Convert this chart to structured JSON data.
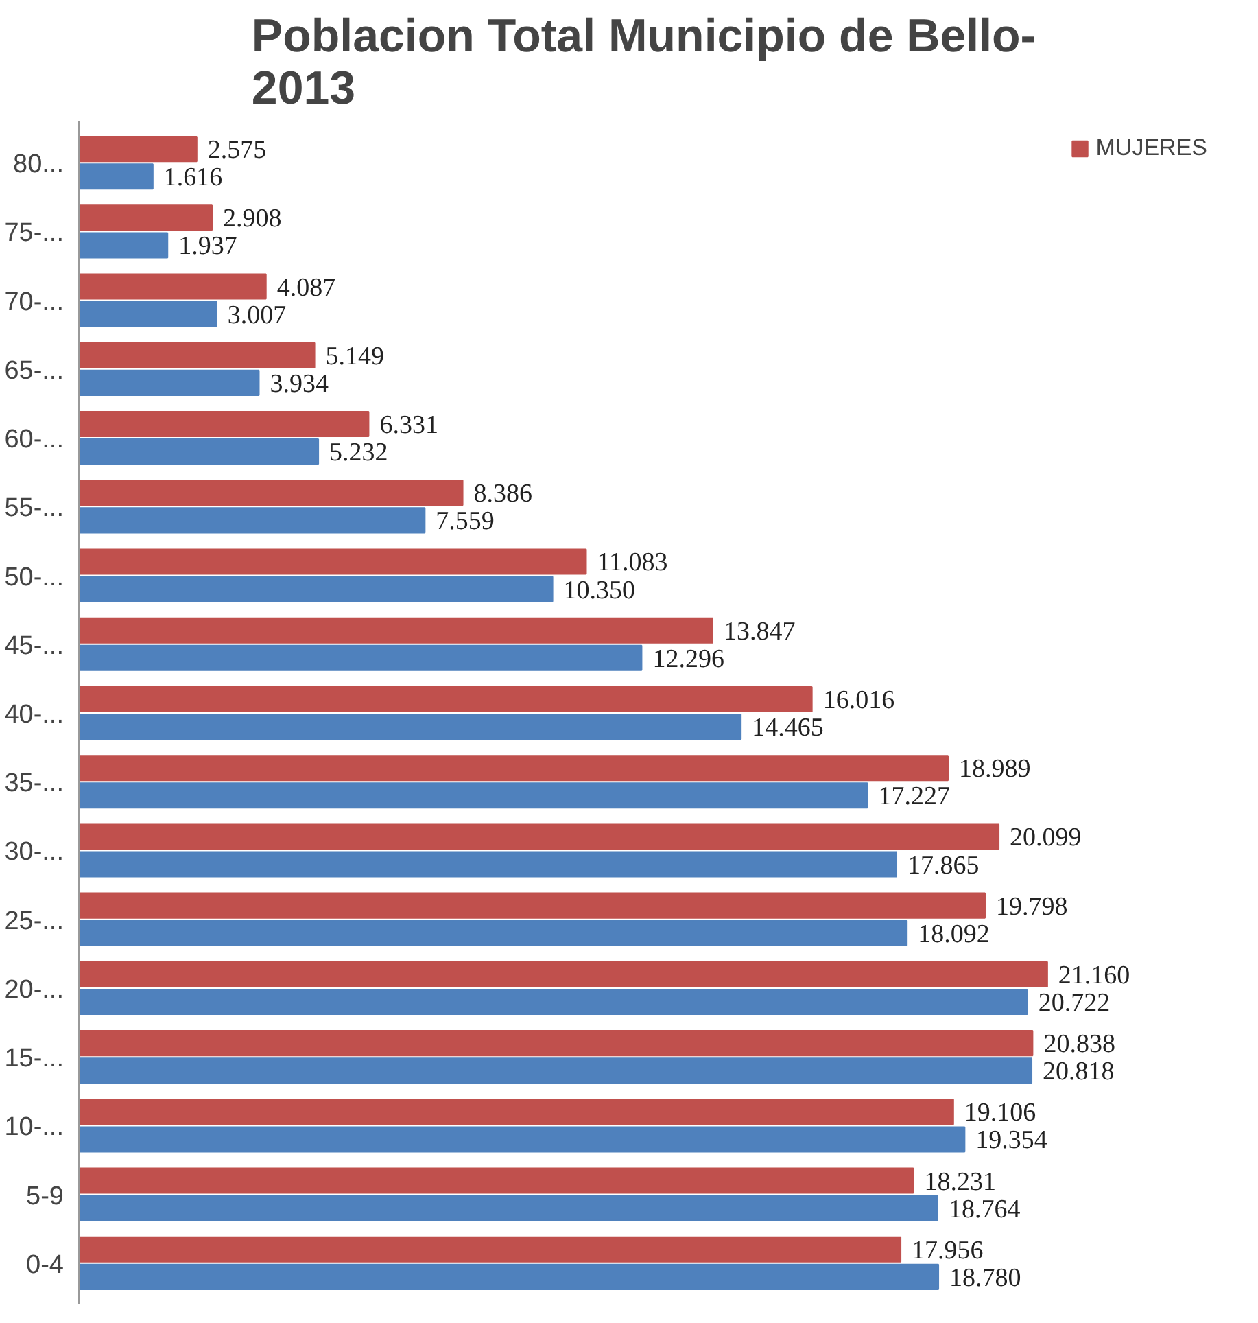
{
  "chart_data": {
    "type": "bar",
    "orientation": "horizontal",
    "title": "Poblacion Total  Municipio de Bello-\n2013",
    "categories": [
      "80...",
      "75-...",
      "70-...",
      "65-...",
      "60-...",
      "55-...",
      "50-...",
      "45-...",
      "40-...",
      "35-...",
      "30-...",
      "25-...",
      "20-...",
      "15-...",
      "10-...",
      "5-9",
      "0-4"
    ],
    "series": [
      {
        "name": "MUJERES",
        "color": "#c0504d",
        "values": [
          2575,
          2908,
          4087,
          5149,
          6331,
          8386,
          11083,
          13847,
          16016,
          18989,
          20099,
          19798,
          21160,
          20838,
          19106,
          18231,
          17956
        ],
        "value_labels": [
          "2.575",
          "2.908",
          "4.087",
          "5.149",
          "6.331",
          "8.386",
          "11.083",
          "13.847",
          "16.016",
          "18.989",
          "20.099",
          "19.798",
          "21.160",
          "20.838",
          "19.106",
          "18.231",
          "17.956"
        ]
      },
      {
        "color": "#4f81bd",
        "values": [
          1616,
          1937,
          3007,
          3934,
          5232,
          7559,
          10350,
          12296,
          14465,
          17227,
          17865,
          18092,
          20722,
          20818,
          19354,
          18764,
          18780
        ],
        "value_labels": [
          "1.616",
          "1.937",
          "3.007",
          "3.934",
          "5.232",
          "7.559",
          "10.350",
          "12.296",
          "14.465",
          "17.227",
          "17.865",
          "18.092",
          "20.722",
          "20.818",
          "19.354",
          "18.764",
          "18.780"
        ]
      }
    ],
    "legend": "top right"
  }
}
